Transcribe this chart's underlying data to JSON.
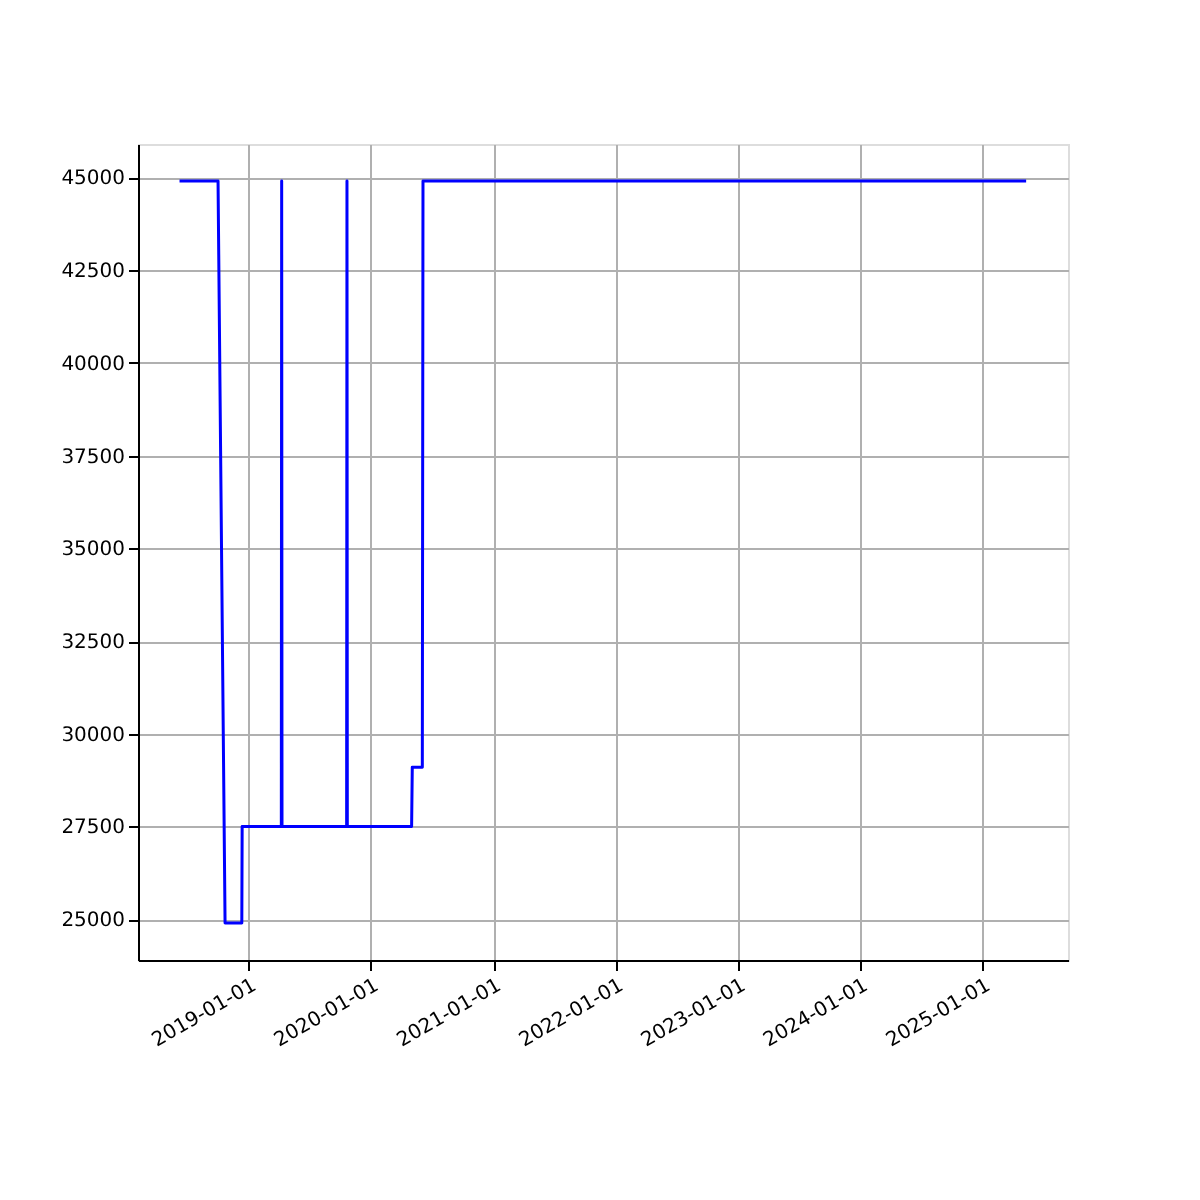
{
  "chart_data": {
    "type": "line",
    "x": [
      "2018-06-09",
      "2018-10-02",
      "2018-10-23",
      "2018-12-12",
      "2018-12-13",
      "2019-04-09",
      "2019-04-10",
      "2019-04-11",
      "2019-10-21",
      "2019-10-22",
      "2019-10-23",
      "2020-05-02",
      "2020-05-04",
      "2020-06-03",
      "2020-06-05",
      "2025-05-11"
    ],
    "series": [
      {
        "color": "#0000ff",
        "values": [
          44900,
          44900,
          24900,
          24900,
          27500,
          27500,
          44900,
          27500,
          27500,
          44900,
          27500,
          27500,
          29100,
          29100,
          44900,
          44900
        ]
      }
    ],
    "xlim": [
      "2018-02-05",
      "2025-09-13"
    ],
    "xticks": [
      "2019-01-01",
      "2020-01-01",
      "2021-01-01",
      "2022-01-01",
      "2023-01-01",
      "2024-01-01",
      "2025-01-01"
    ],
    "ylim": [
      23900,
      45900
    ],
    "yticks": [
      25000,
      27500,
      30000,
      32500,
      35000,
      37500,
      40000,
      42500,
      45000
    ],
    "grid": true,
    "line_style": "solid",
    "marker": "none"
  }
}
